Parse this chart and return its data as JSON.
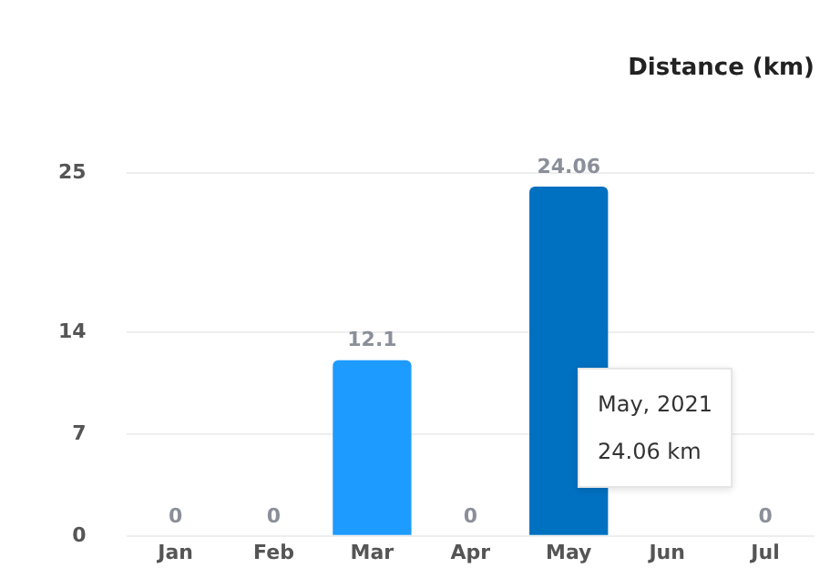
{
  "chart_data": {
    "type": "bar",
    "title": "Distance (km)",
    "categories": [
      "Jan",
      "Feb",
      "Mar",
      "Apr",
      "May",
      "Jun",
      "Jul"
    ],
    "values": [
      0,
      0,
      12.1,
      0,
      24.06,
      null,
      0
    ],
    "colors": [
      "#1e9bff",
      "#1e9bff",
      "#1e9bff",
      "#1e9bff",
      "#0070c0",
      "#1e9bff",
      "#1e9bff"
    ],
    "ylim": [
      0,
      25
    ],
    "yticks": [
      0,
      7,
      14,
      25
    ],
    "grid": "y",
    "data_labels": true,
    "annotations": [
      "May, 2021",
      "24.06 km"
    ]
  }
}
